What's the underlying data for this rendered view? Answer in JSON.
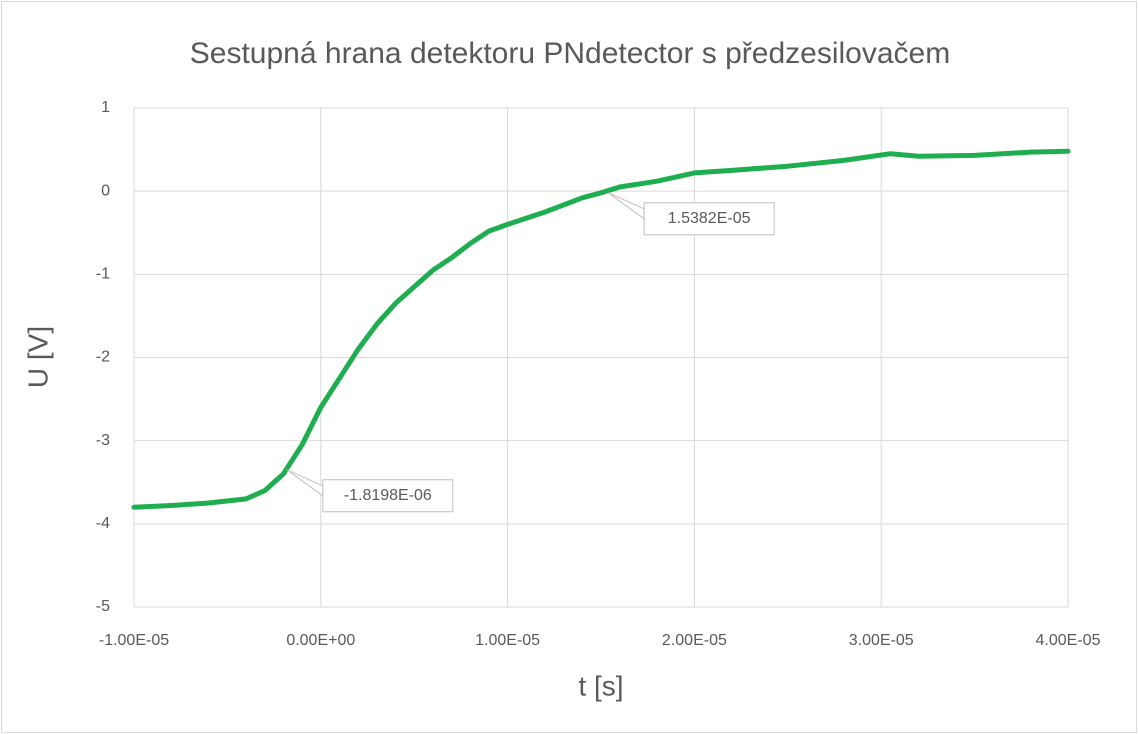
{
  "chart_data": {
    "type": "line",
    "title": "Sestupná hrana detektoru PNdetector s předzesilovačem",
    "x_label": "t [s]",
    "y_label": "U [V]",
    "x": [
      -1e-05,
      -8e-06,
      -6e-06,
      -4e-06,
      -3e-06,
      -2e-06,
      -1e-06,
      0,
      1e-06,
      2e-06,
      3e-06,
      4e-06,
      5e-06,
      6e-06,
      7e-06,
      8e-06,
      9e-06,
      1e-05,
      1.2e-05,
      1.4e-05,
      1.5e-05,
      1.6e-05,
      1.8e-05,
      2e-05,
      2.2e-05,
      2.5e-05,
      2.8e-05,
      3.05e-05,
      3.2e-05,
      3.5e-05,
      3.8e-05,
      4e-05
    ],
    "series": [
      {
        "color": "#1fae4f",
        "values": [
          -3.8,
          -3.78,
          -3.75,
          -3.7,
          -3.6,
          -3.4,
          -3.05,
          -2.6,
          -2.25,
          -1.9,
          -1.6,
          -1.35,
          -1.15,
          -0.95,
          -0.8,
          -0.63,
          -0.48,
          -0.4,
          -0.25,
          -0.08,
          -0.02,
          0.05,
          0.12,
          0.22,
          0.25,
          0.3,
          0.37,
          0.45,
          0.42,
          0.43,
          0.47,
          0.48
        ]
      }
    ],
    "annotations": [
      {
        "label": "-1.8198E-06",
        "x": -1.8198e-06,
        "y": -3.35
      },
      {
        "label": "1.5382E-05",
        "x": 1.5382e-05,
        "y": -0.02
      }
    ],
    "xlim": [
      -1e-05,
      4e-05
    ],
    "xticks": [
      {
        "value": -1e-05,
        "label": "-1.00E-05"
      },
      {
        "value": 0,
        "label": "0.00E+00"
      },
      {
        "value": 1e-05,
        "label": "1.00E-05"
      },
      {
        "value": 2e-05,
        "label": "2.00E-05"
      },
      {
        "value": 3e-05,
        "label": "3.00E-05"
      },
      {
        "value": 4e-05,
        "label": "4.00E-05"
      }
    ],
    "ylim": [
      -5,
      1
    ],
    "yticks": [
      -5,
      -4,
      -3,
      -2,
      -1,
      0,
      1
    ],
    "grid": true
  }
}
